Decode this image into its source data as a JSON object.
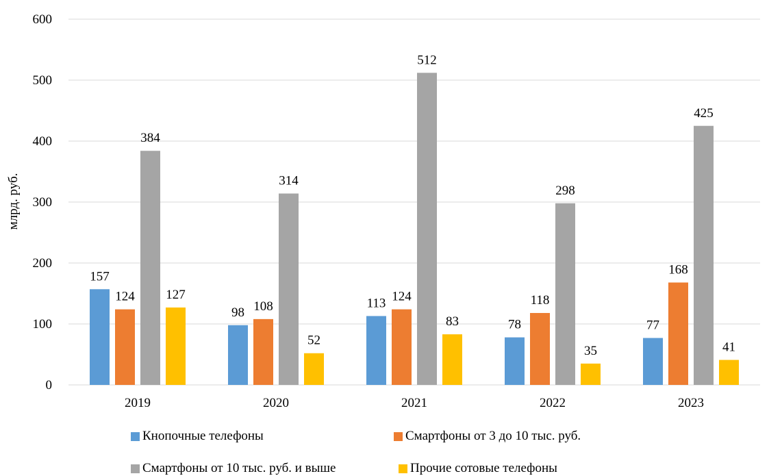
{
  "chart_data": {
    "type": "bar",
    "categories": [
      "2019",
      "2020",
      "2021",
      "2022",
      "2023"
    ],
    "ylabel": "млрд. руб.",
    "xlabel": "",
    "ylim": [
      0,
      600
    ],
    "yticks": [
      "0",
      "100",
      "200",
      "300",
      "400",
      "500",
      "600"
    ],
    "grid": true,
    "legend_position": "bottom",
    "series": [
      {
        "name": "Кнопочные телефоны",
        "color": "#5b9bd5",
        "values": [
          157,
          98,
          113,
          78,
          77
        ]
      },
      {
        "name": "Смартфоны от 3 до 10 тыс. руб.",
        "color": "#ed7d31",
        "values": [
          124,
          108,
          124,
          118,
          168
        ]
      },
      {
        "name": "Смартфоны от 10 тыс. руб. и выше",
        "color": "#a5a5a5",
        "values": [
          384,
          314,
          512,
          298,
          425
        ]
      },
      {
        "name": "Прочие сотовые телефоны",
        "color": "#ffc000",
        "values": [
          127,
          52,
          83,
          35,
          41
        ]
      }
    ]
  }
}
